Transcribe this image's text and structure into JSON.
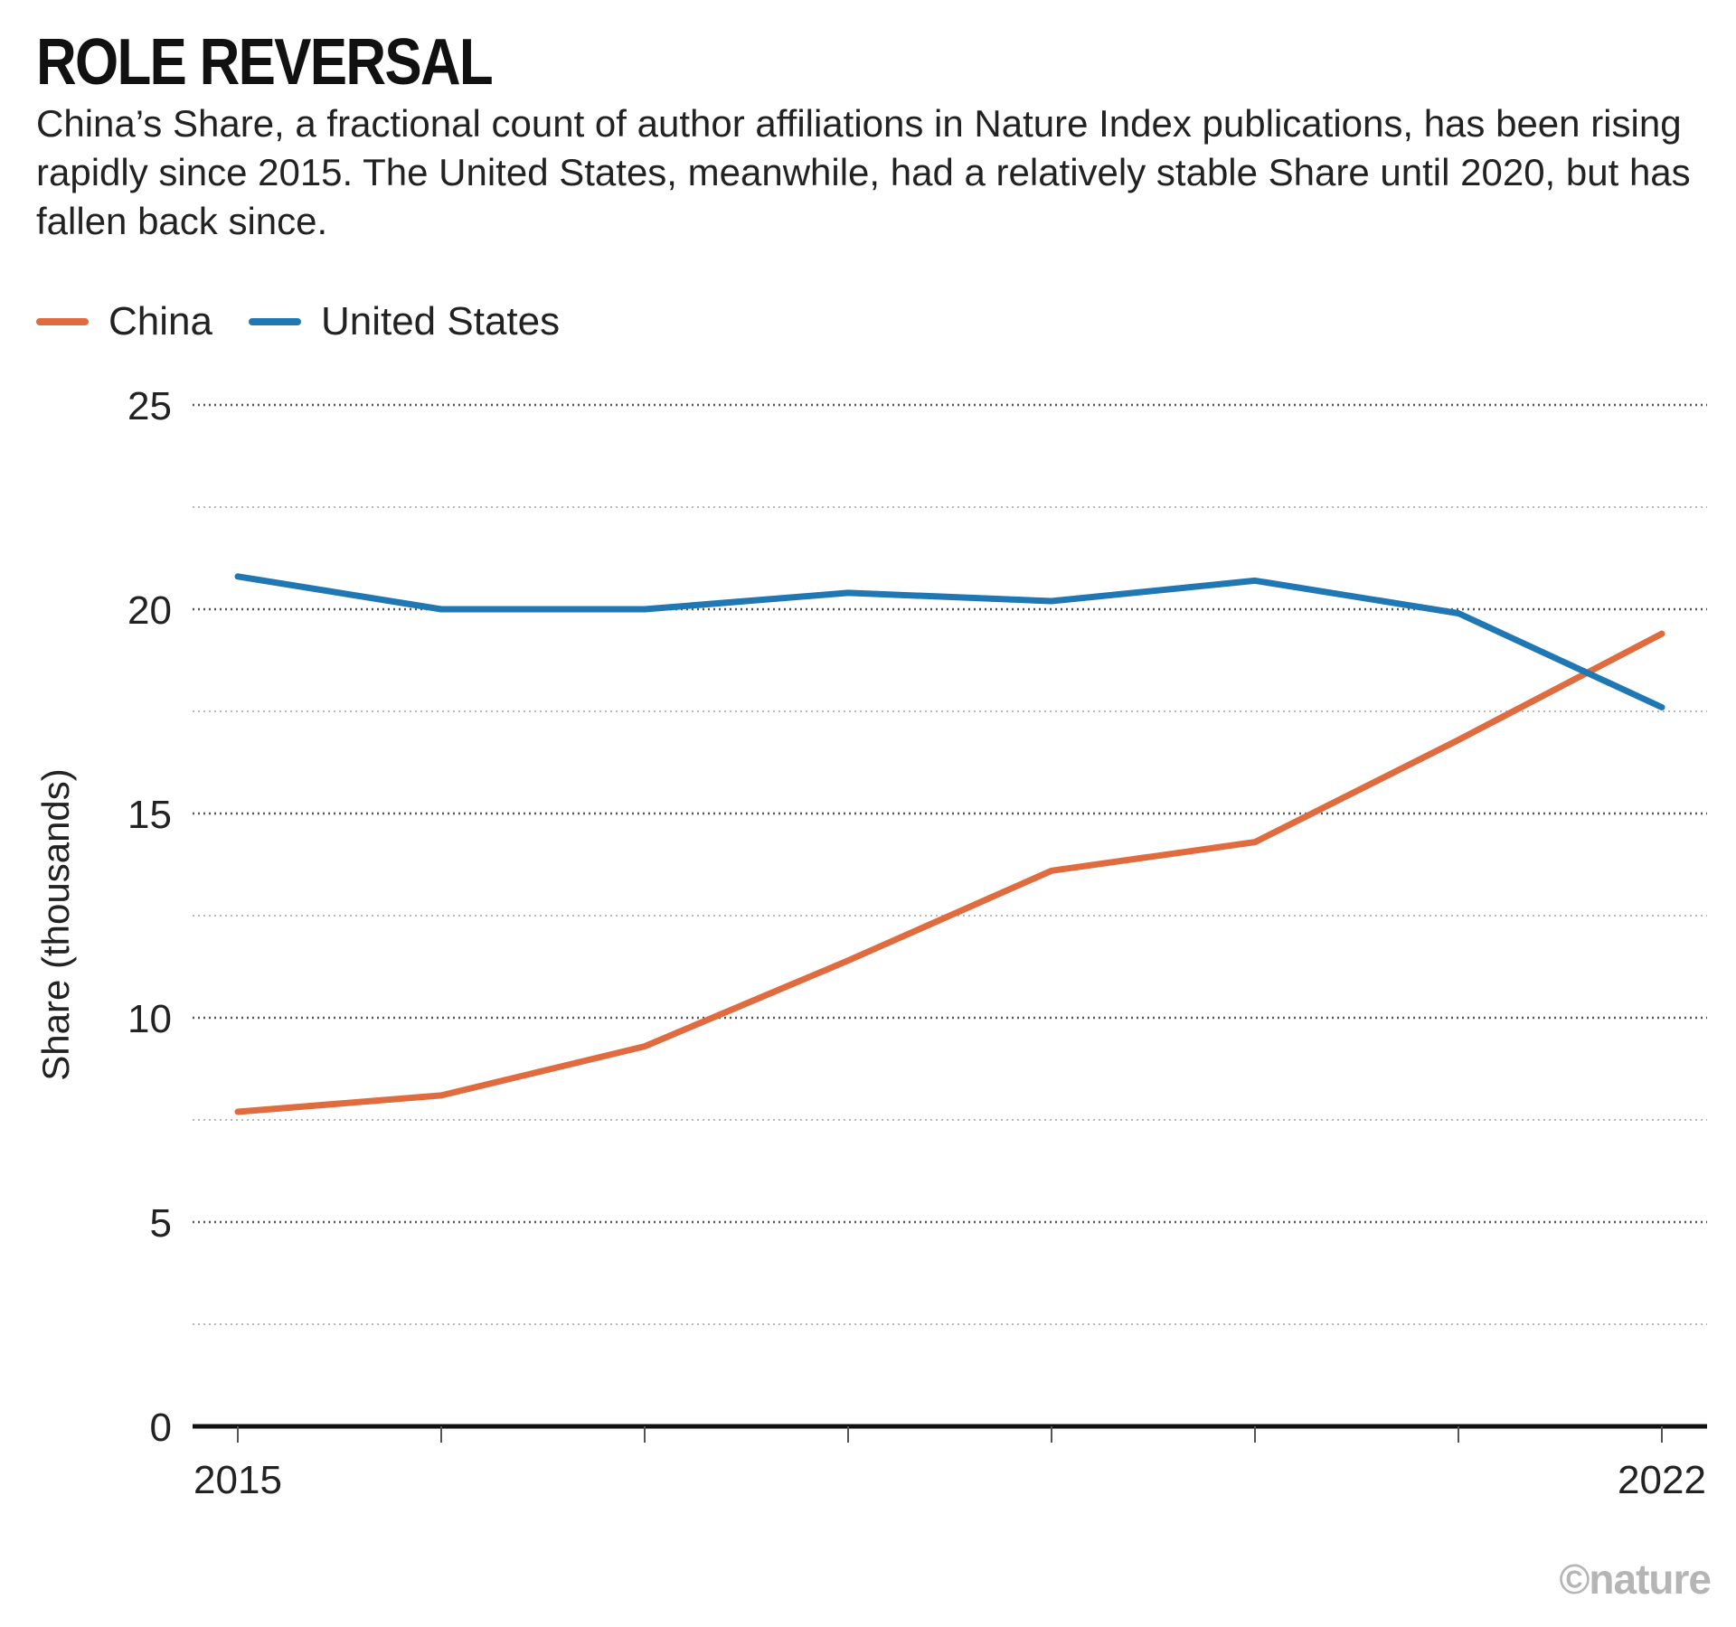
{
  "header": {
    "title": "ROLE REVERSAL",
    "subtitle": "China’s Share, a fractional count of author affiliations in Nature Index publications, has been rising rapidly since 2015. The United States, meanwhile, had a relatively stable Share until 2020, but has fallen back since."
  },
  "legend": {
    "items": [
      {
        "label": "China",
        "color": "#e06b3f"
      },
      {
        "label": "United States",
        "color": "#1f78b4"
      }
    ]
  },
  "watermark": "©nature",
  "chart_data": {
    "type": "line",
    "title": "ROLE REVERSAL",
    "xlabel": "",
    "ylabel": "Share (thousands)",
    "x": [
      2015,
      2016,
      2017,
      2018,
      2019,
      2020,
      2021,
      2022
    ],
    "x_tick_labels": {
      "2015": "2015",
      "2022": "2022"
    },
    "y_ticks": [
      0,
      5,
      10,
      15,
      20,
      25
    ],
    "ylim": [
      0,
      25
    ],
    "grid": true,
    "legend_position": "top-left",
    "series": [
      {
        "name": "China",
        "color": "#e06b3f",
        "values": [
          7.7,
          8.1,
          9.3,
          11.4,
          13.6,
          14.3,
          16.8,
          19.4
        ]
      },
      {
        "name": "United States",
        "color": "#1f78b4",
        "values": [
          20.8,
          20.0,
          20.0,
          20.4,
          20.2,
          20.7,
          19.9,
          17.6
        ]
      }
    ]
  }
}
